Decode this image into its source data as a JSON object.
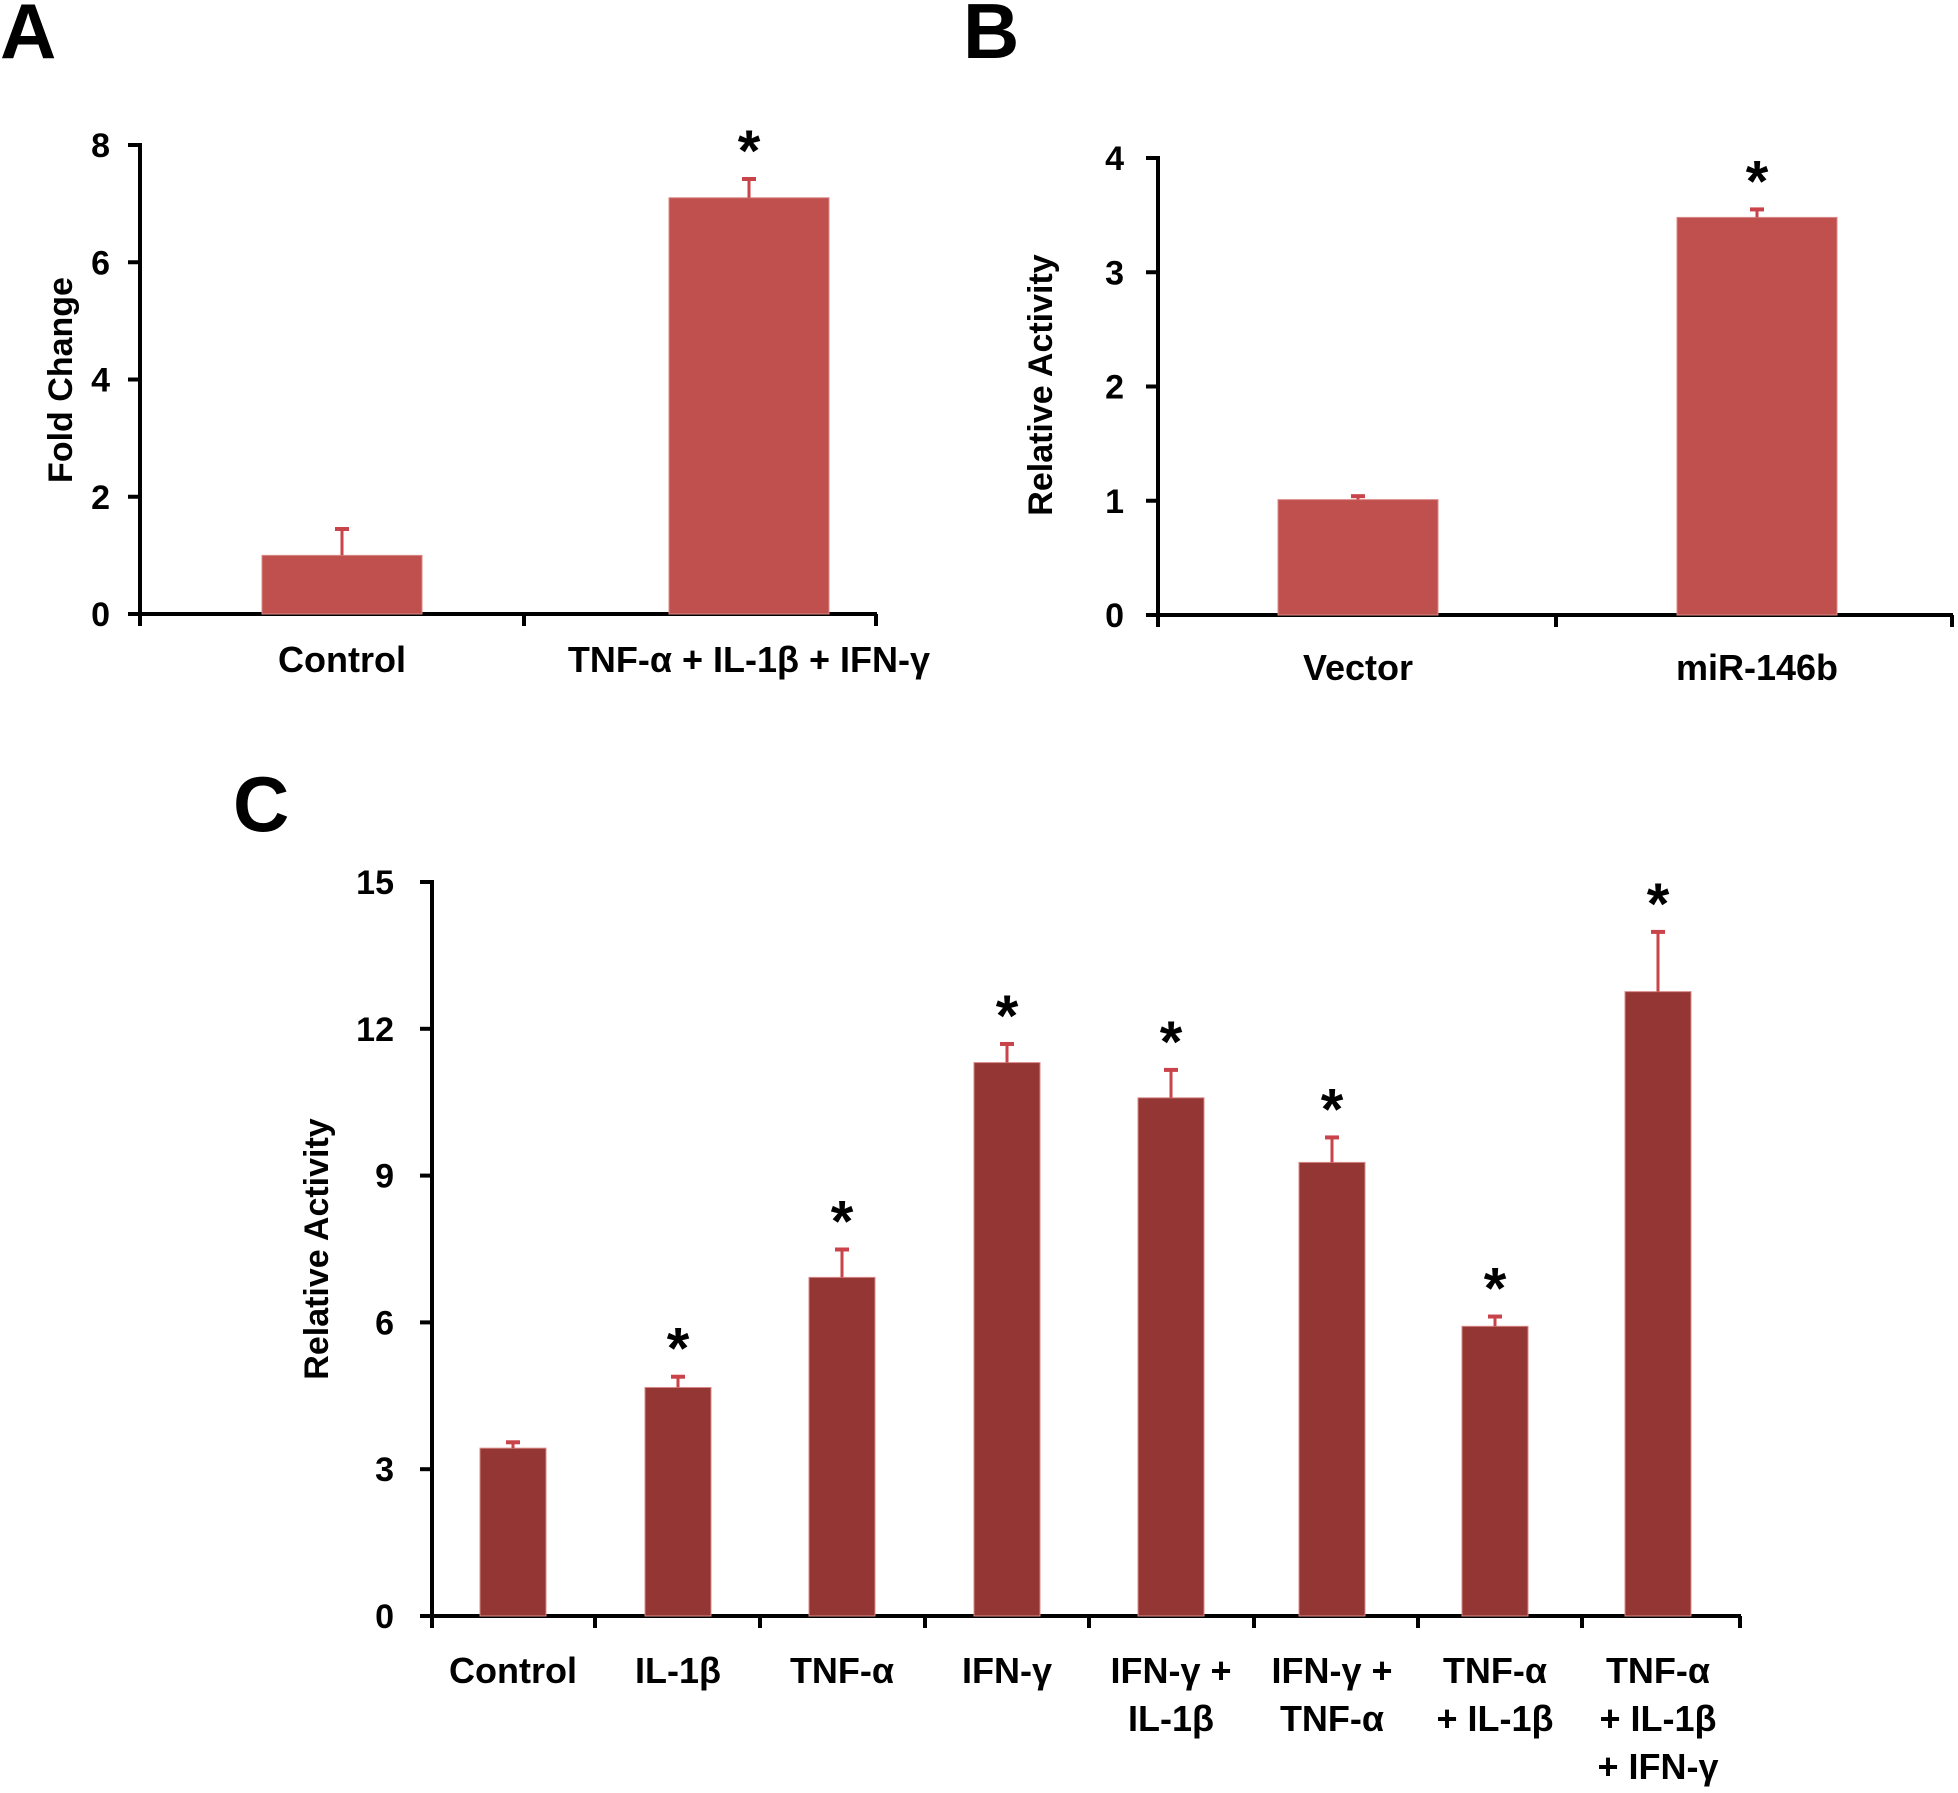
{
  "figure": {
    "panels": [
      "A",
      "B",
      "C"
    ]
  },
  "chart_data": [
    {
      "panel": "A",
      "type": "bar",
      "title": "",
      "xlabel": "",
      "ylabel": "Fold Change",
      "ylim": [
        0,
        8
      ],
      "yticks": [
        0,
        2,
        4,
        6,
        8
      ],
      "categories": [
        "Control",
        "TNF-α + IL-1β + IFN-γ"
      ],
      "values": [
        1.0,
        7.1
      ],
      "error": [
        0.45,
        0.32
      ],
      "significance": [
        "",
        "*"
      ],
      "bar_color": "#c0504d",
      "grid": false,
      "legend": "none"
    },
    {
      "panel": "B",
      "type": "bar",
      "title": "",
      "xlabel": "",
      "ylabel": "Relative Activity",
      "ylim": [
        0,
        4
      ],
      "yticks": [
        0,
        1,
        2,
        3,
        4
      ],
      "categories": [
        "Vector",
        "miR-146b"
      ],
      "values": [
        1.01,
        3.48
      ],
      "error": [
        0.03,
        0.07
      ],
      "significance": [
        "",
        "*"
      ],
      "bar_color": "#c0504d",
      "grid": false,
      "legend": "none"
    },
    {
      "panel": "C",
      "type": "bar",
      "title": "",
      "xlabel": "",
      "ylabel": "Relative Activity",
      "ylim": [
        0,
        15
      ],
      "yticks": [
        0,
        3,
        6,
        9,
        12,
        15
      ],
      "categories": [
        [
          "Control"
        ],
        [
          "IL-1β"
        ],
        [
          "TNF-α"
        ],
        [
          "IFN-γ"
        ],
        [
          "IFN-γ +",
          "IL-1β"
        ],
        [
          "IFN-γ +",
          "TNF-α"
        ],
        [
          "TNF-α",
          "+ IL-1β"
        ],
        [
          "TNF-α",
          "+ IL-1β",
          "+ IFN-γ"
        ]
      ],
      "values": [
        3.43,
        4.67,
        6.92,
        11.31,
        10.59,
        9.27,
        5.92,
        12.76
      ],
      "error": [
        0.12,
        0.22,
        0.57,
        0.38,
        0.57,
        0.51,
        0.2,
        1.22
      ],
      "significance": [
        "",
        "*",
        "*",
        "*",
        "*",
        "*",
        "*",
        "*"
      ],
      "bar_color": "#943634",
      "grid": false,
      "legend": "none"
    }
  ]
}
